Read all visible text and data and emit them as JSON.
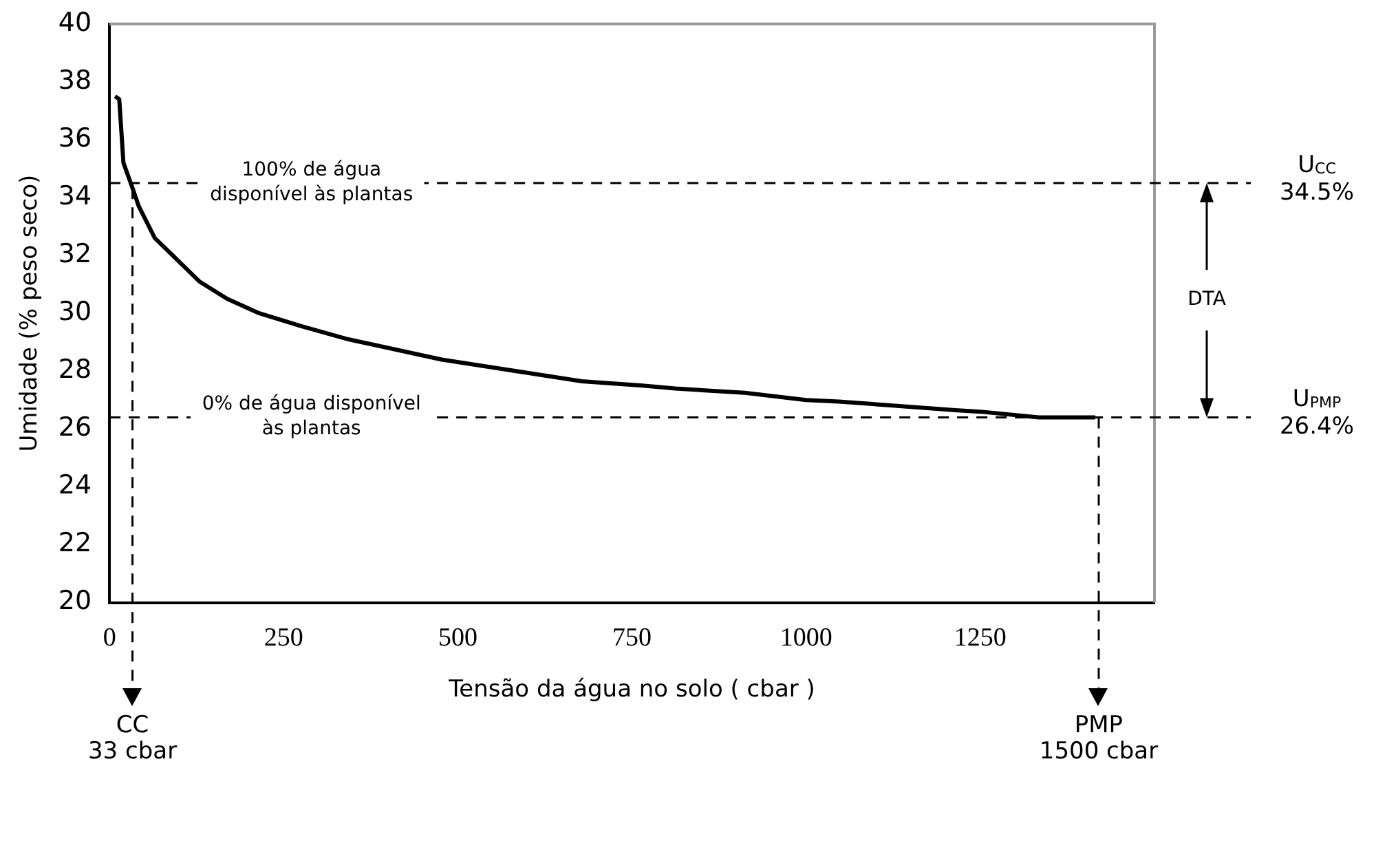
{
  "chart_data": {
    "type": "line",
    "xlabel": "Tensão da água no solo ( cbar )",
    "ylabel": "Umidade (% peso seco)",
    "series": [
      {
        "color": "#000000",
        "x": [
          8,
          14,
          20,
          32,
          42,
          65,
          95,
          129,
          169,
          215,
          276,
          343,
          410,
          477,
          544,
          611,
          678,
          765,
          812,
          912,
          1000,
          1047,
          1214,
          1250,
          1334,
          1415
        ],
        "values": [
          37.5,
          37.4,
          35.2,
          34.4,
          33.7,
          32.6,
          31.9,
          31.1,
          30.5,
          30.0,
          29.55,
          29.1,
          28.75,
          28.4,
          28.15,
          27.9,
          27.65,
          27.5,
          27.4,
          27.25,
          27.0,
          26.95,
          26.65,
          26.6,
          26.4,
          26.4
        ]
      }
    ],
    "xlim": [
      0,
      1500
    ],
    "xticks": [
      0,
      250,
      500,
      750,
      1000,
      1250
    ],
    "ylim": [
      20,
      40
    ],
    "yticks": [
      20,
      22,
      24,
      26,
      28,
      30,
      32,
      34,
      36,
      38,
      40
    ],
    "ref_lines": [
      {
        "axis": "y",
        "value": 34.5,
        "label": "U$_{CC}$\n34.5%",
        "line_style": "dashed"
      },
      {
        "axis": "y",
        "value": 26.4,
        "label": "U$_{PMP}$\n26.4%",
        "line_style": "dashed"
      },
      {
        "axis": "x",
        "value": 33,
        "label": "CC\n33 cbar",
        "line_style": "dashed"
      },
      {
        "axis": "x",
        "value": 1420,
        "label": "PMP\n1500 cbar",
        "line_style": "dashed"
      }
    ],
    "annotations": [
      {
        "text": "100% de água\ndisponível às plantas",
        "x": 290,
        "y": 34.5
      },
      {
        "text": "0% de água disponível\nàs plantas",
        "x": 290,
        "y": 26.4
      },
      "DTA"
    ],
    "grid": false,
    "legend": false,
    "marker": "none",
    "line_style": "solid"
  }
}
